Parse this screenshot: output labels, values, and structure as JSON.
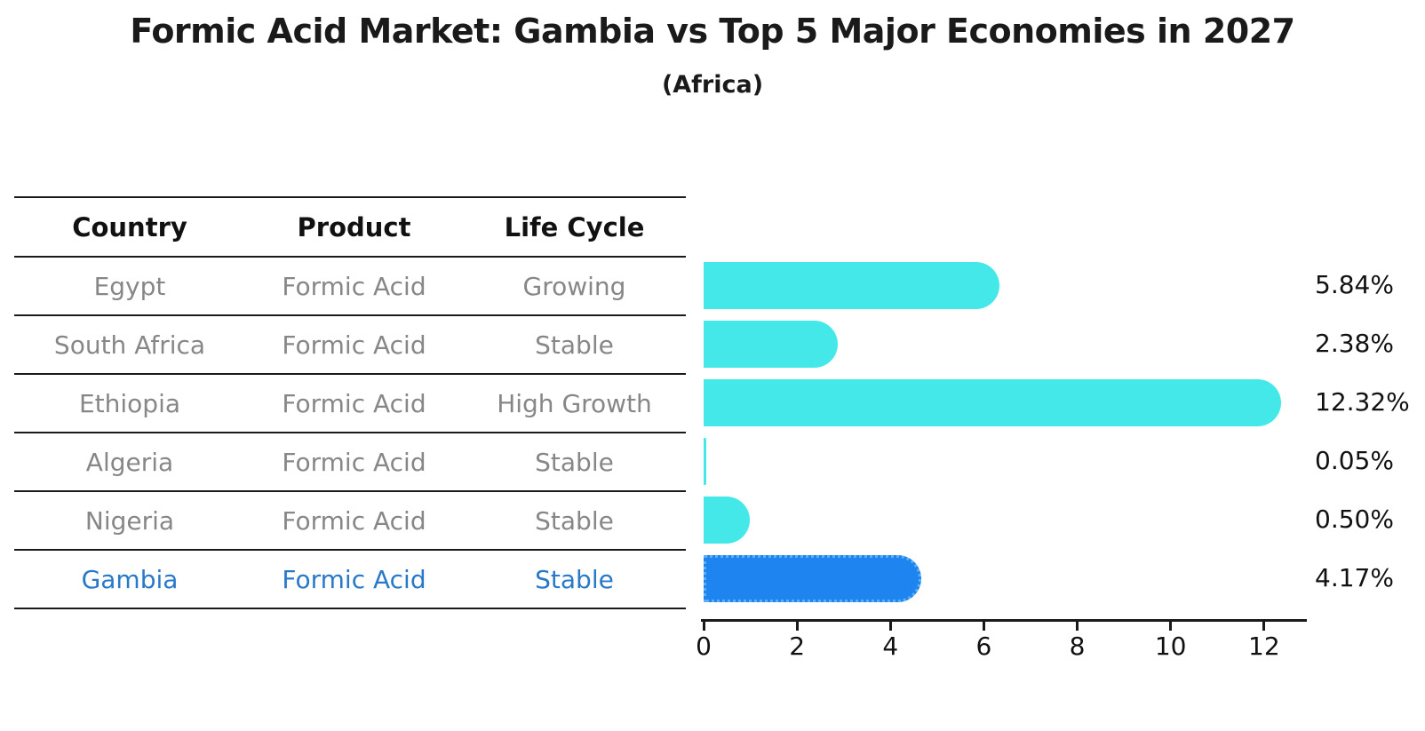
{
  "header": {
    "title": "Formic Acid Market: Gambia vs Top 5 Major Economies in 2027",
    "subtitle": "(Africa)"
  },
  "table": {
    "columns": [
      "Country",
      "Product",
      "Life Cycle"
    ],
    "rows": [
      {
        "country": "Egypt",
        "product": "Formic Acid",
        "life_cycle": "Growing",
        "highlighted": false
      },
      {
        "country": "South Africa",
        "product": "Formic Acid",
        "life_cycle": "Stable",
        "highlighted": false
      },
      {
        "country": "Ethiopia",
        "product": "Formic Acid",
        "life_cycle": "High Growth",
        "highlighted": false
      },
      {
        "country": "Algeria",
        "product": "Formic Acid",
        "life_cycle": "Stable",
        "highlighted": false
      },
      {
        "country": "Nigeria",
        "product": "Formic Acid",
        "life_cycle": "Stable",
        "highlighted": false
      },
      {
        "country": "Gambia",
        "product": "Formic Acid",
        "life_cycle": "Stable",
        "highlighted": true
      }
    ]
  },
  "chart_data": {
    "type": "bar",
    "orientation": "horizontal",
    "title": "Formic Acid Market: Gambia vs Top 5 Major Economies in 2027",
    "subtitle": "(Africa)",
    "categories": [
      "Egypt",
      "South Africa",
      "Ethiopia",
      "Algeria",
      "Nigeria",
      "Gambia"
    ],
    "values": [
      5.84,
      2.38,
      12.32,
      0.05,
      0.5,
      4.17
    ],
    "value_labels": [
      "5.84%",
      "2.38%",
      "12.32%",
      "0.05%",
      "0.50%",
      "4.17%"
    ],
    "xlabel": "",
    "ylabel": "",
    "xlim": [
      0,
      12.95
    ],
    "x_ticks": [
      "0",
      "2",
      "4",
      "6",
      "8",
      "10",
      "12"
    ],
    "grid": false,
    "legend": "none",
    "highlight_index": 5,
    "colors": {
      "bar": "#45E8E8",
      "highlight_bar": "#1E85F0",
      "highlight_border": "#5FAEF2",
      "highlight_text": "#2979C9",
      "table_text": "#878787",
      "heading_text": "#111111",
      "axis": "#1a1a1a"
    }
  }
}
